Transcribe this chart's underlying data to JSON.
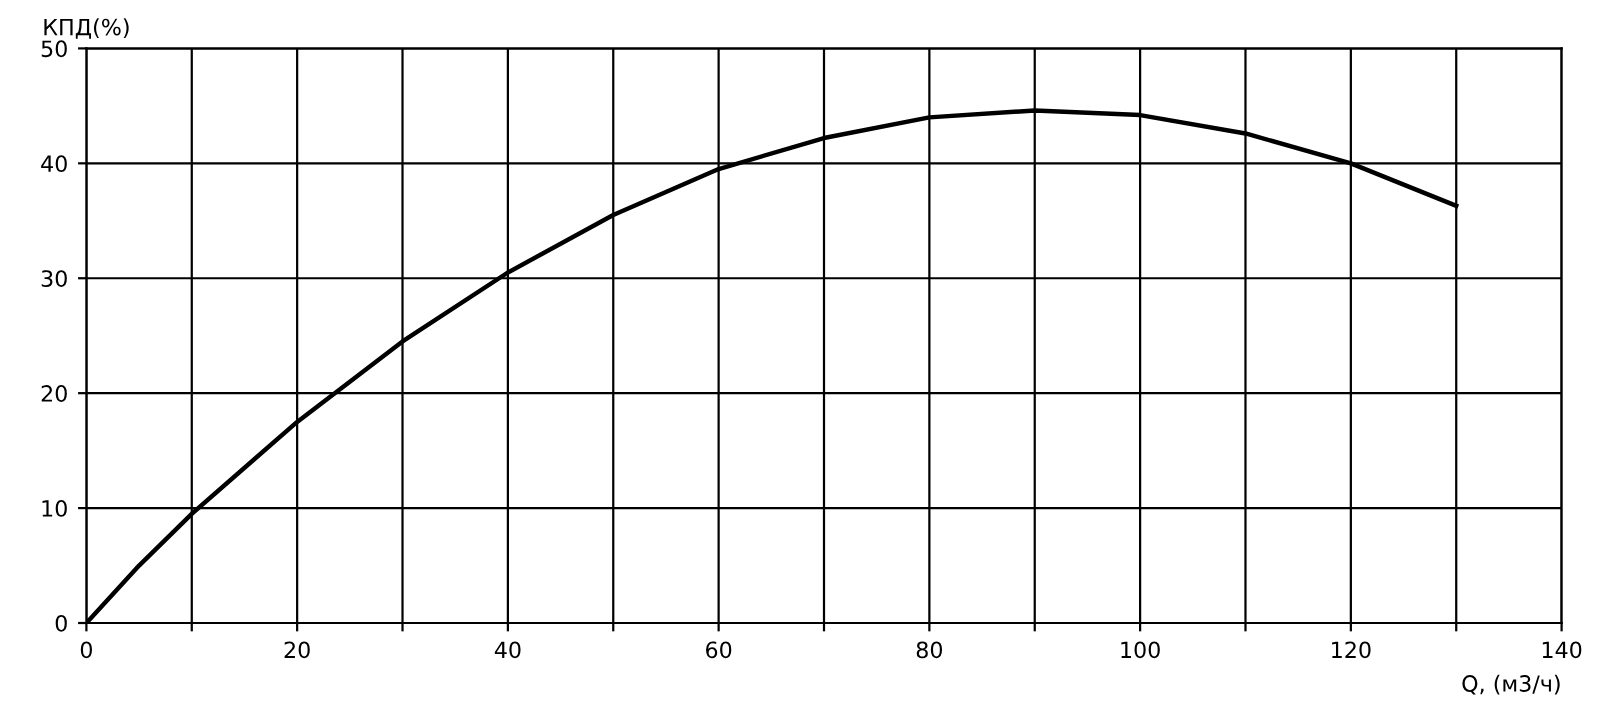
{
  "chart_data": {
    "type": "line",
    "xlabel": "Q, (м3/ч)",
    "ylabel": "КПД(%)",
    "x": [
      0,
      5,
      10,
      20,
      30,
      40,
      50,
      60,
      70,
      80,
      90,
      100,
      110,
      120,
      130
    ],
    "series": [
      {
        "color": "#000000",
        "values": [
          0,
          5,
          9.5,
          17.5,
          24.5,
          30.5,
          35.5,
          39.5,
          42.2,
          44,
          44.6,
          44.2,
          42.6,
          40,
          36.3
        ]
      }
    ],
    "xlim": [
      0,
      140
    ],
    "ylim": [
      0,
      50
    ],
    "xticks": [
      0,
      {
        "value": 10,
        "label": null
      },
      20,
      {
        "value": 30,
        "label": null
      },
      40,
      {
        "value": 50,
        "label": null
      },
      60,
      {
        "value": 70,
        "label": null
      },
      80,
      {
        "value": 90,
        "label": null
      },
      100,
      {
        "value": 110,
        "label": null
      },
      120,
      {
        "value": 130,
        "label": null
      },
      140
    ],
    "yticks": [
      0,
      10,
      20,
      30,
      40,
      50
    ],
    "grid": true,
    "marker": "none",
    "line_style": "solid"
  }
}
